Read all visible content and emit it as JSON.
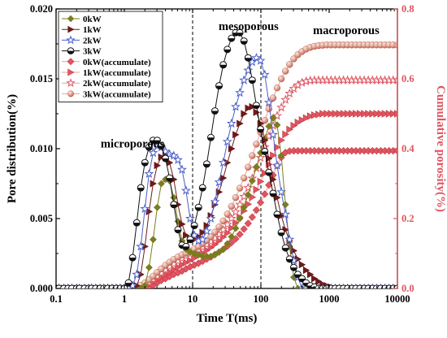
{
  "chart_data": {
    "type": "line",
    "xlabel": "Time T(ms)",
    "ylabel": "Pore distribution(%)",
    "y2label": "Cumulative porosity(%)",
    "xscale": "log",
    "xlim": [
      0.1,
      10000
    ],
    "ylim": [
      0,
      0.02
    ],
    "y2lim": [
      0,
      0.8
    ],
    "xticks": [
      "0.1",
      "1",
      "10",
      "100",
      "1000",
      "10000"
    ],
    "yticks": [
      "0.000",
      "0.005",
      "0.010",
      "0.015",
      "0.020"
    ],
    "y2ticks": [
      "0.0",
      "0.2",
      "0.4",
      "0.6",
      "0.8"
    ],
    "y2_color": "#e05560",
    "grid": false,
    "legend_position": "top-left",
    "dividers_x": [
      10,
      100
    ],
    "annotations": [
      {
        "text": "microporous",
        "x": 0.45,
        "y": 0.0101
      },
      {
        "text": "mesoporous",
        "x": 24,
        "y": 0.0185
      },
      {
        "text": "macroporous",
        "x": 580,
        "y": 0.0182
      }
    ],
    "x": [
      0.1,
      0.11,
      0.13,
      0.15,
      0.17,
      0.2,
      0.22,
      0.26,
      0.3,
      0.33,
      0.38,
      0.44,
      0.5,
      0.57,
      0.66,
      0.76,
      0.87,
      1.0,
      1.15,
      1.32,
      1.52,
      1.74,
      2.0,
      2.3,
      2.64,
      3.03,
      3.48,
      4.0,
      4.6,
      5.3,
      6.1,
      7.0,
      8.0,
      9.2,
      10.6,
      12.2,
      14,
      16.1,
      18.5,
      21.2,
      24.4,
      28.1,
      32.3,
      37.1,
      42.7,
      49.1,
      56.5,
      65,
      74.7,
      85.9,
      98.8,
      114,
      131,
      151,
      173,
      199,
      229,
      263,
      303,
      348,
      400,
      460,
      529,
      608,
      700,
      805,
      925,
      1064,
      1224,
      1407,
      1619,
      1861,
      2141,
      2462,
      2831,
      3256,
      3744,
      4306,
      4952,
      5695,
      6549,
      7531,
      8661,
      9960
    ],
    "series": [
      {
        "name": "0kW",
        "axis": "left",
        "marker": "diamond",
        "color": "#7a7d1e",
        "values": [
          0,
          0,
          0,
          0,
          0,
          0,
          0,
          0,
          0,
          0,
          0,
          0,
          0,
          0,
          0,
          0,
          0,
          0,
          0,
          0,
          0,
          0,
          0.0002,
          0.0015,
          0.0035,
          0.0058,
          0.0075,
          0.0078,
          0.0077,
          0.0065,
          0.0048,
          0.0034,
          0.0028,
          0.0026,
          0.0025,
          0.0024,
          0.0023,
          0.0023,
          0.0023,
          0.0024,
          0.0026,
          0.0028,
          0.0032,
          0.0037,
          0.0043,
          0.005,
          0.0058,
          0.0067,
          0.0077,
          0.0087,
          0.0097,
          0.0107,
          0.0116,
          0.0122,
          0.0117,
          0.0095,
          0.006,
          0.003,
          0.0008,
          0,
          0,
          0,
          0,
          0,
          0,
          0,
          0,
          0,
          0,
          0,
          0,
          0,
          0,
          0,
          0,
          0,
          0,
          0,
          0,
          0,
          0,
          0,
          0,
          0
        ]
      },
      {
        "name": "1kW",
        "axis": "left",
        "marker": "triangle-right",
        "color": "#6e1a1a",
        "values": [
          0,
          0,
          0,
          0,
          0,
          0,
          0,
          0,
          0,
          0,
          0,
          0,
          0,
          0,
          0,
          0,
          0,
          0,
          0,
          0,
          0.0002,
          0.001,
          0.003,
          0.0055,
          0.0075,
          0.0088,
          0.0094,
          0.0095,
          0.009,
          0.0078,
          0.006,
          0.0046,
          0.0038,
          0.0035,
          0.0035,
          0.0037,
          0.004,
          0.0045,
          0.0052,
          0.006,
          0.0069,
          0.0079,
          0.009,
          0.01,
          0.011,
          0.0118,
          0.0125,
          0.0129,
          0.013,
          0.0126,
          0.0118,
          0.0106,
          0.0093,
          0.0078,
          0.0065,
          0.0052,
          0.0042,
          0.0034,
          0.0027,
          0.0021,
          0.0017,
          0.0013,
          0.001,
          0.0007,
          0.0005,
          0.0003,
          0.0002,
          0.0001,
          0,
          0,
          0,
          0,
          0,
          0,
          0,
          0,
          0,
          0,
          0,
          0,
          0,
          0,
          0,
          0
        ]
      },
      {
        "name": "2kW",
        "axis": "left",
        "marker": "star",
        "color": "#4a5fc8",
        "values": [
          0,
          0,
          0,
          0,
          0,
          0,
          0,
          0,
          0,
          0,
          0,
          0,
          0,
          0,
          0,
          0,
          0,
          0,
          0,
          0.0002,
          0.001,
          0.003,
          0.0057,
          0.0082,
          0.0097,
          0.0102,
          0.0101,
          0.0098,
          0.0096,
          0.0095,
          0.0092,
          0.0085,
          0.007,
          0.005,
          0.0038,
          0.0034,
          0.0035,
          0.0041,
          0.005,
          0.0062,
          0.0076,
          0.009,
          0.0105,
          0.0118,
          0.013,
          0.014,
          0.0149,
          0.0156,
          0.0162,
          0.0165,
          0.0163,
          0.0153,
          0.0133,
          0.011,
          0.0088,
          0.0069,
          0.0053,
          0.0035,
          0.002,
          0.0008,
          0,
          0,
          0,
          0,
          0,
          0,
          0,
          0,
          0,
          0,
          0,
          0,
          0,
          0,
          0,
          0,
          0,
          0,
          0,
          0,
          0,
          0,
          0,
          0
        ]
      },
      {
        "name": "3kW",
        "axis": "left",
        "marker": "half-circle",
        "color": "#111111",
        "values": [
          0,
          0,
          0,
          0,
          0,
          0,
          0,
          0,
          0,
          0,
          0,
          0,
          0,
          0,
          0,
          0,
          0,
          0,
          0.0004,
          0.0022,
          0.0047,
          0.0072,
          0.009,
          0.0101,
          0.0106,
          0.0106,
          0.0102,
          0.0093,
          0.0079,
          0.006,
          0.0042,
          0.0031,
          0.003,
          0.0035,
          0.0045,
          0.0058,
          0.0072,
          0.0089,
          0.0108,
          0.0127,
          0.0145,
          0.016,
          0.0171,
          0.0179,
          0.0183,
          0.0183,
          0.0177,
          0.0165,
          0.0149,
          0.0131,
          0.0114,
          0.0098,
          0.0083,
          0.0068,
          0.0053,
          0.004,
          0.0029,
          0.0021,
          0.0015,
          0.001,
          0.0007,
          0.0004,
          0.0002,
          0.0001,
          0,
          0,
          0,
          0,
          0,
          0,
          0,
          0,
          0,
          0,
          0,
          0,
          0,
          0,
          0,
          0,
          0,
          0,
          0,
          0
        ]
      },
      {
        "name": "0kW(accumulate)",
        "axis": "right",
        "marker": "filled-diamond",
        "color": "#e05560",
        "values": [
          0,
          0,
          0,
          0,
          0,
          0,
          0,
          0,
          0,
          0,
          0,
          0,
          0,
          0,
          0,
          0,
          0,
          0,
          0,
          0,
          0,
          0,
          0,
          0.003,
          0.009,
          0.016,
          0.023,
          0.028,
          0.034,
          0.04,
          0.045,
          0.05,
          0.056,
          0.062,
          0.067,
          0.072,
          0.078,
          0.084,
          0.09,
          0.097,
          0.104,
          0.112,
          0.121,
          0.131,
          0.142,
          0.155,
          0.17,
          0.186,
          0.204,
          0.224,
          0.246,
          0.27,
          0.296,
          0.324,
          0.352,
          0.375,
          0.389,
          0.393,
          0.394,
          0.394,
          0.394,
          0.394,
          0.394,
          0.394,
          0.394,
          0.394,
          0.394,
          0.394,
          0.394,
          0.394,
          0.394,
          0.394,
          0.394,
          0.394,
          0.394,
          0.394,
          0.394,
          0.394,
          0.394,
          0.394,
          0.394,
          0.394,
          0.394,
          0.394
        ]
      },
      {
        "name": "1kW(accumulate)",
        "axis": "right",
        "marker": "filled-triangle",
        "color": "#e05560",
        "values": [
          0,
          0,
          0,
          0,
          0,
          0,
          0,
          0,
          0,
          0,
          0,
          0,
          0,
          0,
          0,
          0,
          0,
          0,
          0,
          0,
          0,
          0.002,
          0.006,
          0.012,
          0.019,
          0.026,
          0.033,
          0.04,
          0.047,
          0.054,
          0.061,
          0.068,
          0.074,
          0.08,
          0.087,
          0.094,
          0.101,
          0.109,
          0.117,
          0.126,
          0.136,
          0.147,
          0.159,
          0.173,
          0.188,
          0.204,
          0.222,
          0.241,
          0.261,
          0.283,
          0.306,
          0.33,
          0.355,
          0.381,
          0.404,
          0.424,
          0.441,
          0.455,
          0.466,
          0.475,
          0.482,
          0.488,
          0.493,
          0.496,
          0.498,
          0.5,
          0.5,
          0.5,
          0.5,
          0.5,
          0.5,
          0.5,
          0.5,
          0.5,
          0.5,
          0.5,
          0.5,
          0.5,
          0.5,
          0.5,
          0.5,
          0.5,
          0.5,
          0.5
        ]
      },
      {
        "name": "2kW(accumulate)",
        "axis": "right",
        "marker": "open-star",
        "color": "#e05560",
        "values": [
          0,
          0,
          0,
          0,
          0,
          0,
          0,
          0,
          0,
          0,
          0,
          0,
          0,
          0,
          0,
          0,
          0,
          0,
          0,
          0,
          0.001,
          0.004,
          0.009,
          0.017,
          0.026,
          0.035,
          0.044,
          0.053,
          0.062,
          0.07,
          0.078,
          0.086,
          0.093,
          0.099,
          0.105,
          0.111,
          0.118,
          0.126,
          0.134,
          0.144,
          0.155,
          0.168,
          0.183,
          0.2,
          0.219,
          0.24,
          0.263,
          0.288,
          0.315,
          0.344,
          0.374,
          0.405,
          0.436,
          0.466,
          0.494,
          0.518,
          0.54,
          0.558,
          0.572,
          0.582,
          0.589,
          0.593,
          0.595,
          0.596,
          0.596,
          0.596,
          0.596,
          0.596,
          0.596,
          0.596,
          0.596,
          0.596,
          0.596,
          0.596,
          0.596,
          0.596,
          0.596,
          0.596,
          0.596,
          0.596,
          0.596,
          0.596,
          0.596,
          0.596
        ]
      },
      {
        "name": "3kW(accumulate)",
        "axis": "right",
        "marker": "shaded-circle",
        "color": "#d98a7a",
        "values": [
          0,
          0,
          0,
          0,
          0,
          0,
          0,
          0,
          0,
          0,
          0,
          0,
          0,
          0,
          0,
          0,
          0,
          0,
          0,
          0.001,
          0.004,
          0.009,
          0.016,
          0.025,
          0.035,
          0.046,
          0.056,
          0.066,
          0.075,
          0.083,
          0.09,
          0.096,
          0.101,
          0.107,
          0.113,
          0.12,
          0.128,
          0.137,
          0.148,
          0.161,
          0.176,
          0.193,
          0.213,
          0.235,
          0.26,
          0.287,
          0.316,
          0.347,
          0.38,
          0.413,
          0.447,
          0.481,
          0.514,
          0.545,
          0.574,
          0.6,
          0.622,
          0.641,
          0.657,
          0.669,
          0.678,
          0.685,
          0.69,
          0.693,
          0.695,
          0.696,
          0.697,
          0.697,
          0.697,
          0.697,
          0.697,
          0.697,
          0.697,
          0.697,
          0.697,
          0.697,
          0.697,
          0.697,
          0.697,
          0.697,
          0.697,
          0.697,
          0.697,
          0.697
        ]
      }
    ]
  }
}
